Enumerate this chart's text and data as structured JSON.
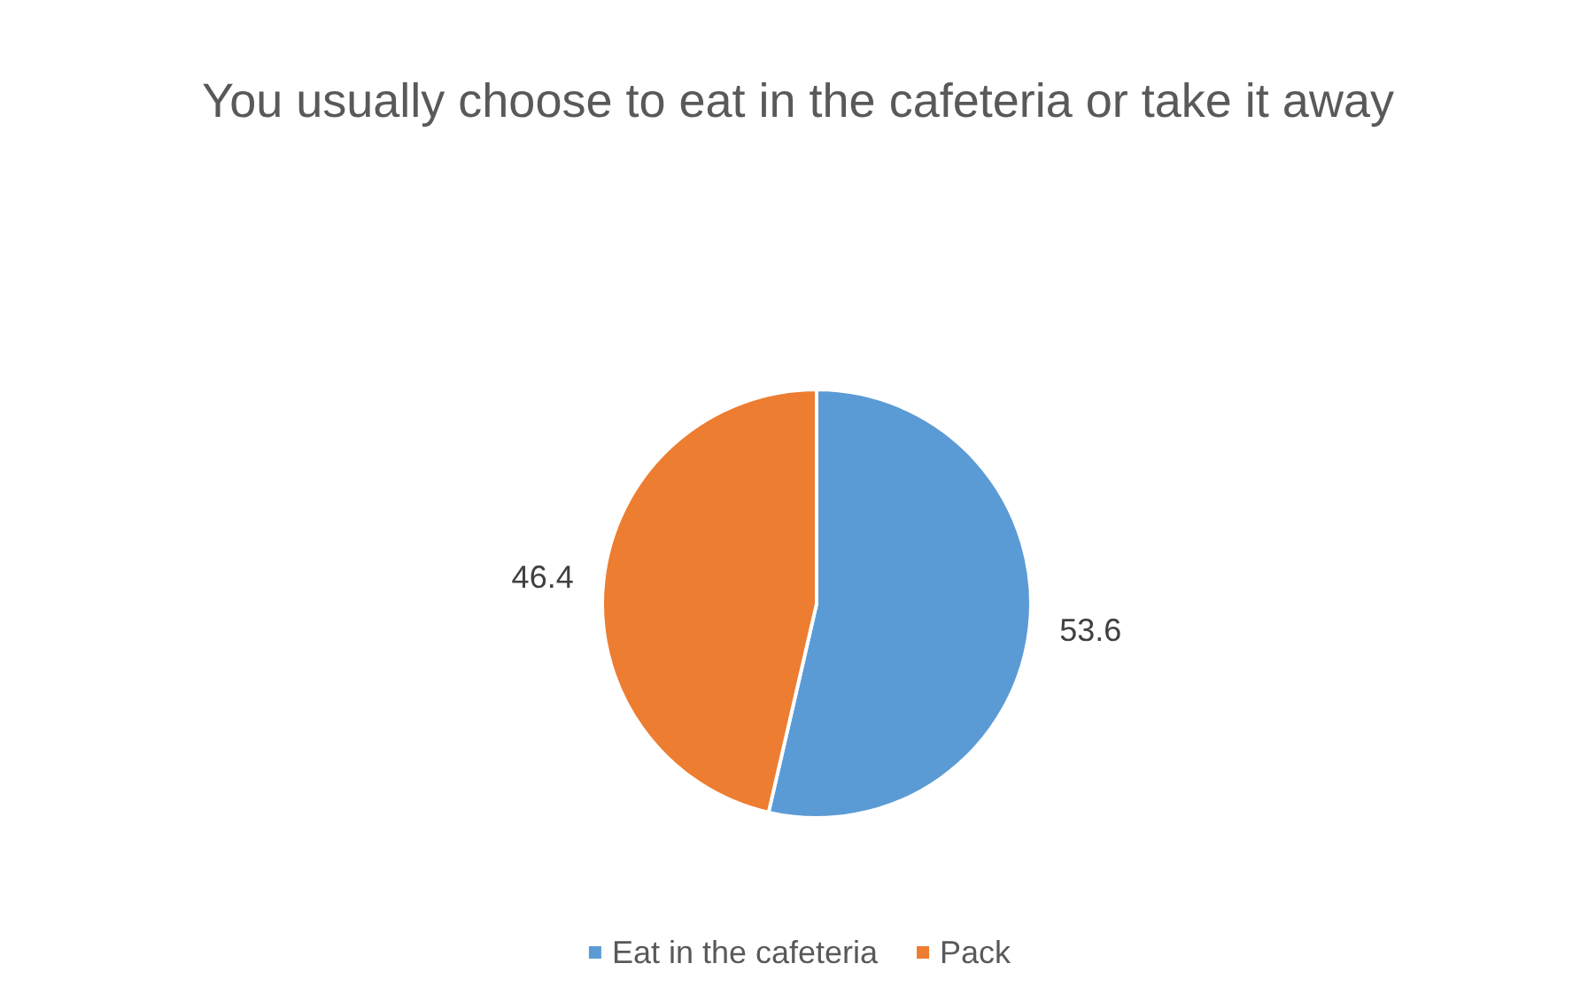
{
  "chart_data": {
    "type": "pie",
    "title": "You usually choose to eat in the cafeteria or take it away",
    "categories": [
      "Eat in the cafeteria",
      "Pack"
    ],
    "values": [
      53.6,
      46.4
    ],
    "colors": [
      "#5b9bd5",
      "#ed7d31"
    ],
    "data_labels": true,
    "legend": "bottom"
  }
}
